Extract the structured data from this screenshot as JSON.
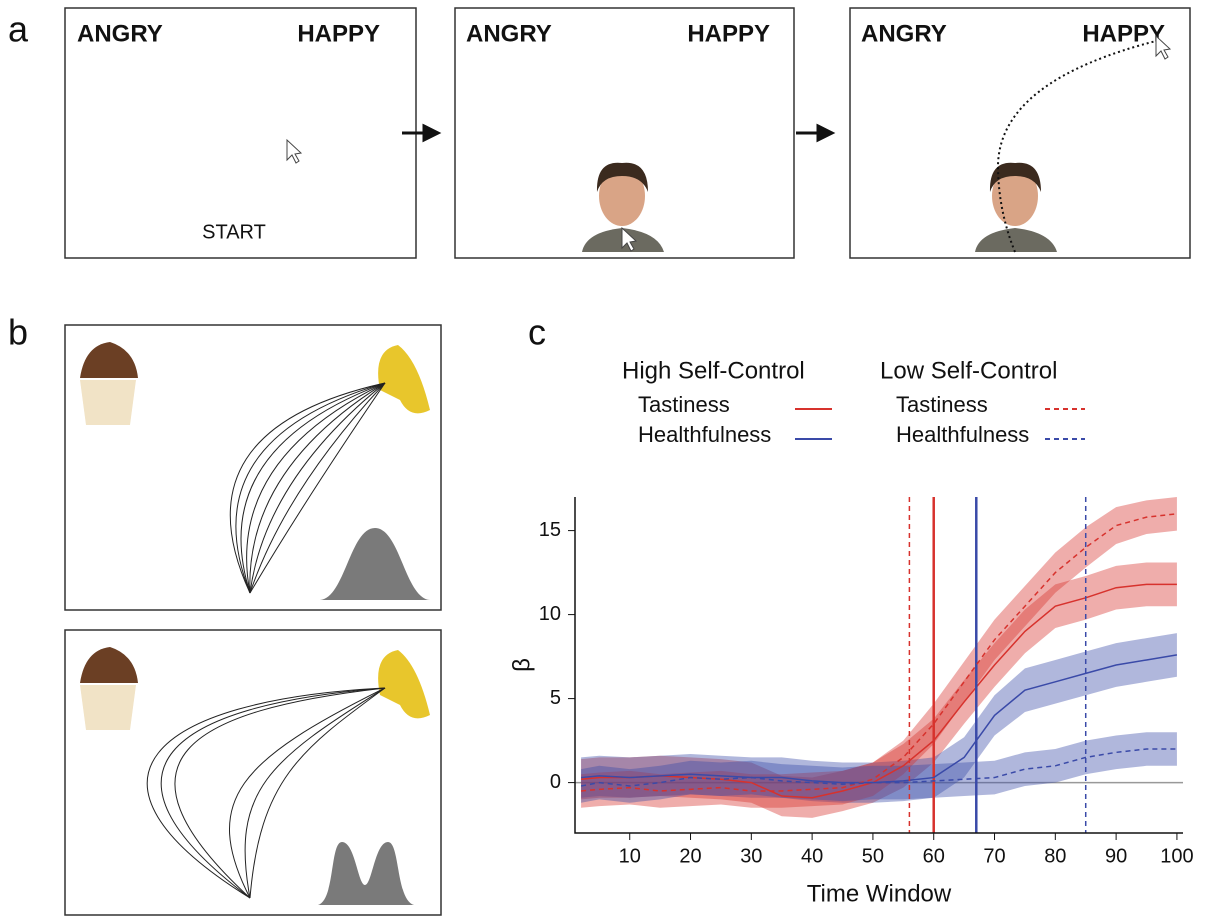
{
  "figure": {
    "panels": [
      {
        "label": "a",
        "screens": [
          {
            "left": "ANGRY",
            "right": "HAPPY",
            "start": "START"
          },
          {
            "left": "ANGRY",
            "right": "HAPPY"
          },
          {
            "left": "ANGRY",
            "right": "HAPPY"
          }
        ]
      },
      {
        "label": "b"
      },
      {
        "label": "c"
      }
    ]
  },
  "chart_data": {
    "type": "line",
    "x_label": "Time Window",
    "y_label": "β",
    "x": [
      2,
      5,
      10,
      15,
      20,
      25,
      30,
      35,
      40,
      45,
      50,
      55,
      60,
      65,
      70,
      75,
      80,
      85,
      90,
      95,
      100
    ],
    "xlim": [
      1,
      101
    ],
    "xticks": [
      10,
      20,
      30,
      40,
      50,
      60,
      70,
      80,
      90,
      100
    ],
    "ylim": [
      -3,
      17
    ],
    "yticks": [
      0,
      5,
      10,
      15
    ],
    "series": [
      {
        "group": "High Self-Control",
        "name": "Tastiness",
        "color": "#d7322d",
        "dashed": false,
        "onset": 60,
        "values": [
          0.2,
          0.3,
          0.3,
          0.4,
          0.3,
          0.2,
          0.0,
          -0.8,
          -0.9,
          -0.5,
          0.0,
          1.0,
          2.5,
          4.8,
          7.0,
          9.0,
          10.5,
          11.0,
          11.6,
          11.8,
          11.8
        ],
        "lower": [
          -1.0,
          -0.9,
          -0.9,
          -0.8,
          -0.9,
          -1.0,
          -1.2,
          -2.0,
          -2.1,
          -1.7,
          -1.2,
          -0.3,
          1.2,
          3.5,
          5.7,
          7.7,
          9.2,
          9.7,
          10.3,
          10.5,
          10.5
        ],
        "upper": [
          1.4,
          1.5,
          1.5,
          1.6,
          1.5,
          1.4,
          1.2,
          0.4,
          0.3,
          0.7,
          1.2,
          2.3,
          3.8,
          6.1,
          8.3,
          10.3,
          11.8,
          12.3,
          12.9,
          13.1,
          13.1
        ]
      },
      {
        "group": "High Self-Control",
        "name": "Healthfulness",
        "color": "#3a4aa8",
        "dashed": false,
        "onset": 67,
        "values": [
          0.3,
          0.4,
          0.3,
          0.4,
          0.5,
          0.4,
          0.3,
          0.3,
          0.1,
          0.0,
          0.0,
          0.1,
          0.3,
          1.5,
          4.0,
          5.5,
          6.0,
          6.5,
          7.0,
          7.3,
          7.6
        ],
        "lower": [
          -0.9,
          -0.8,
          -0.9,
          -0.8,
          -0.7,
          -0.8,
          -0.9,
          -0.9,
          -1.1,
          -1.2,
          -1.2,
          -1.1,
          -0.9,
          0.3,
          2.8,
          4.2,
          4.7,
          5.2,
          5.7,
          6.0,
          6.3
        ],
        "upper": [
          1.5,
          1.6,
          1.5,
          1.6,
          1.7,
          1.6,
          1.5,
          1.5,
          1.3,
          1.2,
          1.2,
          1.3,
          1.5,
          2.7,
          5.2,
          6.8,
          7.3,
          7.8,
          8.3,
          8.6,
          8.9
        ]
      },
      {
        "group": "Low Self-Control",
        "name": "Tastiness",
        "color": "#d7322d",
        "dashed": true,
        "onset": 56,
        "values": [
          -0.5,
          -0.4,
          -0.3,
          -0.5,
          -0.4,
          -0.3,
          -0.5,
          -0.5,
          -0.4,
          -0.3,
          0.2,
          1.5,
          3.5,
          6.0,
          8.5,
          10.5,
          12.5,
          14.0,
          15.3,
          15.8,
          16.0
        ],
        "lower": [
          -1.5,
          -1.4,
          -1.3,
          -1.5,
          -1.4,
          -1.3,
          -1.5,
          -1.5,
          -1.4,
          -1.3,
          -0.8,
          0.5,
          2.3,
          4.8,
          7.3,
          9.3,
          11.3,
          12.8,
          14.2,
          14.8,
          15.0
        ],
        "upper": [
          0.5,
          0.6,
          0.7,
          0.5,
          0.6,
          0.7,
          0.5,
          0.5,
          0.6,
          0.7,
          1.2,
          2.5,
          4.7,
          7.2,
          9.7,
          11.7,
          13.7,
          15.2,
          16.4,
          16.8,
          17.0
        ]
      },
      {
        "group": "Low Self-Control",
        "name": "Healthfulness",
        "color": "#3a4aa8",
        "dashed": true,
        "onset": 85,
        "values": [
          -0.2,
          0.0,
          -0.2,
          0.0,
          0.3,
          0.2,
          0.3,
          0.1,
          0.0,
          -0.1,
          0.0,
          0.0,
          0.1,
          0.2,
          0.3,
          0.8,
          1.0,
          1.5,
          1.8,
          2.0,
          2.0
        ],
        "lower": [
          -1.2,
          -1.0,
          -1.2,
          -1.0,
          -0.7,
          -0.8,
          -0.7,
          -0.9,
          -1.0,
          -1.1,
          -1.0,
          -1.0,
          -0.9,
          -0.8,
          -0.7,
          -0.2,
          0.0,
          0.5,
          0.8,
          1.0,
          1.0
        ],
        "upper": [
          0.8,
          1.0,
          0.8,
          1.0,
          1.3,
          1.2,
          1.3,
          1.1,
          1.0,
          0.9,
          1.0,
          1.0,
          1.1,
          1.2,
          1.3,
          1.8,
          2.0,
          2.5,
          2.8,
          3.0,
          3.0
        ]
      }
    ]
  }
}
